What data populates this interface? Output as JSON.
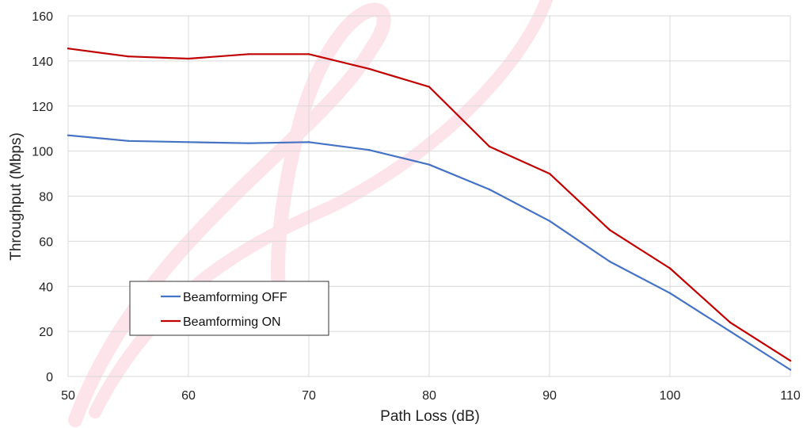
{
  "chart_data": {
    "type": "line",
    "title": "",
    "xlabel": "Path Loss (dB)",
    "ylabel": "Throughput (Mbps)",
    "xlim": [
      50,
      110
    ],
    "ylim": [
      0,
      160
    ],
    "x_ticks": [
      50,
      60,
      70,
      80,
      90,
      100,
      110
    ],
    "y_ticks": [
      0,
      20,
      40,
      60,
      80,
      100,
      120,
      140,
      160
    ],
    "grid": true,
    "legend_position": "lower-left",
    "x": [
      50,
      55,
      60,
      65,
      70,
      75,
      80,
      85,
      90,
      95,
      100,
      105,
      110
    ],
    "series": [
      {
        "name": "Beamforming OFF",
        "color": "#4472C4",
        "values": [
          107,
          104.5,
          104,
          103.5,
          104,
          100.5,
          94,
          83,
          69,
          51,
          37,
          20,
          3
        ]
      },
      {
        "name": "Beamforming ON",
        "color": "#C00000",
        "values": [
          145.5,
          142,
          141,
          143,
          143,
          136.5,
          128.5,
          102,
          90,
          65,
          48,
          24,
          7
        ]
      }
    ]
  }
}
